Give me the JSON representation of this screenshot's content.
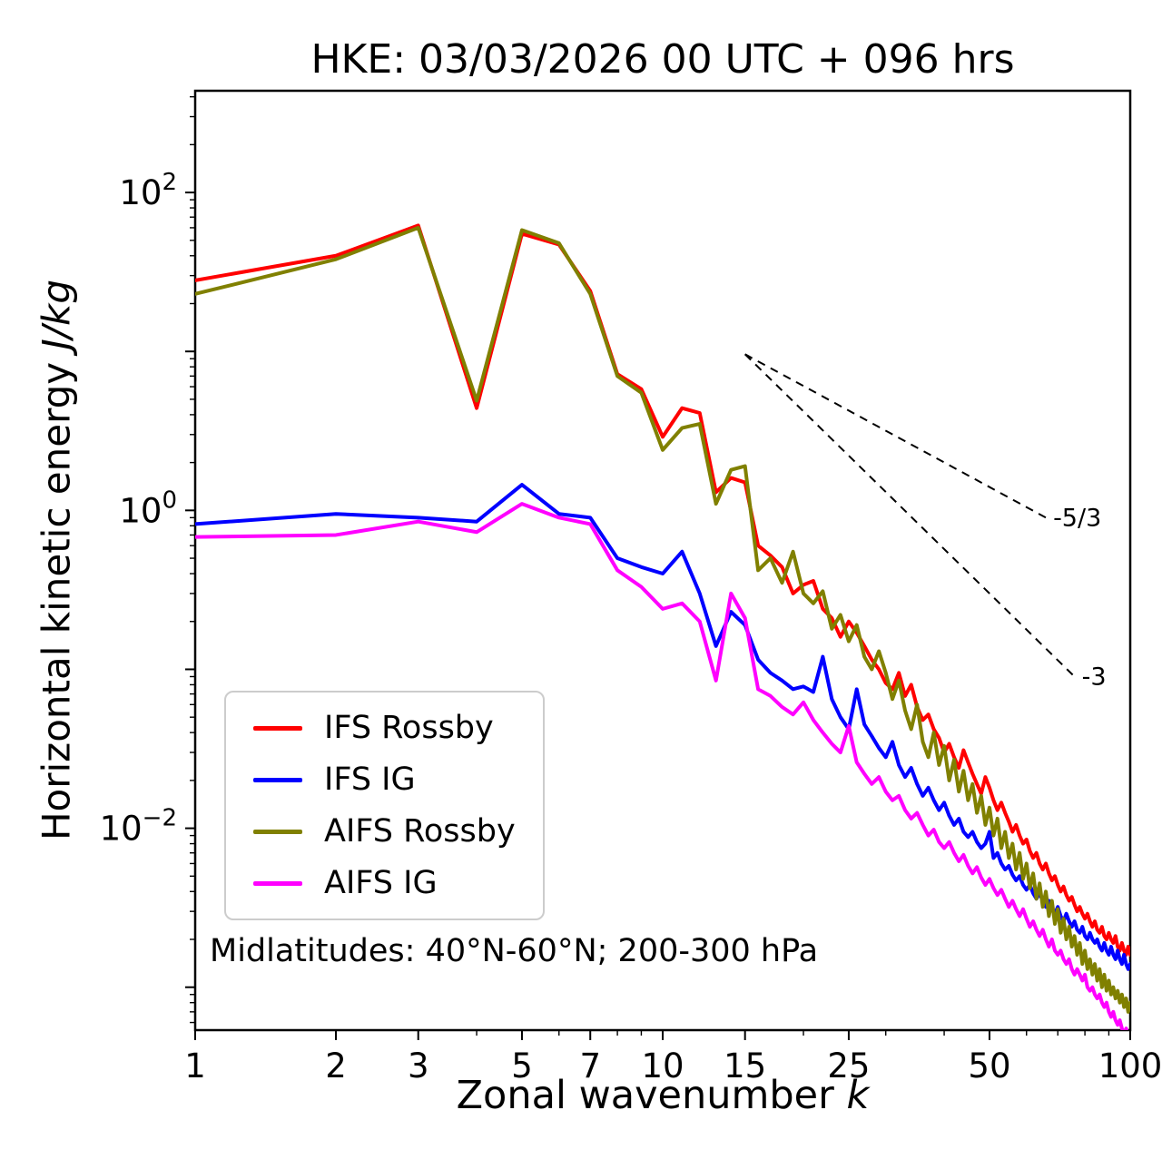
{
  "chart_data": {
    "type": "line",
    "title": "HKE: 03/03/2026 00 UTC + 096 hrs",
    "xlabel_text": "Zonal wavenumber ",
    "xlabel_math": "k",
    "ylabel_text": "Horizontal kinetic energy ",
    "ylabel_math": "J/kg",
    "annotation": "Midlatitudes: 40°N-60°N; 200-300 hPa",
    "x_scale": "log",
    "y_scale": "log",
    "xlim": [
      1,
      100
    ],
    "ylim_log10": [
      -3.27,
      2.64
    ],
    "grid": false,
    "legend_position": "lower left",
    "x_ticks": [
      {
        "value": 1,
        "label": "1"
      },
      {
        "value": 2,
        "label": "2"
      },
      {
        "value": 3,
        "label": "3"
      },
      {
        "value": 5,
        "label": "5"
      },
      {
        "value": 7,
        "label": "7"
      },
      {
        "value": 10,
        "label": "10"
      },
      {
        "value": 15,
        "label": "15"
      },
      {
        "value": 25,
        "label": "25"
      },
      {
        "value": 50,
        "label": "50"
      },
      {
        "value": 100,
        "label": "100"
      }
    ],
    "x_minor_ticks": [
      4,
      6,
      8,
      9,
      20,
      30,
      40,
      60,
      70,
      80,
      90
    ],
    "y_ticks": [
      {
        "log10": 2,
        "base": "10",
        "exp": "2"
      },
      {
        "log10": 0,
        "base": "10",
        "exp": "0"
      },
      {
        "log10": -2,
        "base": "10",
        "exp": "−2"
      }
    ],
    "y_major_unlabeled_log10": [
      1,
      -1,
      -3
    ],
    "reference_lines": [
      {
        "label": "-5/3",
        "k1": 15,
        "v1": 9.6,
        "k2": 66,
        "v2": 0.9
      },
      {
        "label": "-3",
        "k1": 15,
        "v1": 9.6,
        "k2": 76,
        "v2": 0.09
      }
    ],
    "k": [
      1,
      2,
      3,
      4,
      5,
      6,
      7,
      8,
      9,
      10,
      11,
      12,
      13,
      14,
      15,
      16,
      17,
      18,
      19,
      20,
      21,
      22,
      23,
      24,
      25,
      26,
      27,
      28,
      29,
      30,
      31,
      32,
      33,
      34,
      35,
      36,
      37,
      38,
      39,
      40,
      41,
      42,
      43,
      44,
      45,
      46,
      47,
      48,
      49,
      50,
      51,
      52,
      53,
      54,
      55,
      56,
      57,
      58,
      59,
      60,
      61,
      62,
      63,
      64,
      65,
      66,
      67,
      68,
      69,
      70,
      71,
      72,
      73,
      74,
      75,
      76,
      77,
      78,
      79,
      80,
      81,
      82,
      83,
      84,
      85,
      86,
      87,
      88,
      89,
      90,
      91,
      92,
      93,
      94,
      95,
      96,
      97,
      98,
      99,
      100
    ],
    "series": [
      {
        "name": "IFS Rossby",
        "color": "#ff0000",
        "values": [
          28,
          40,
          62,
          4.4,
          55,
          47,
          24,
          7.2,
          5.8,
          2.9,
          4.4,
          4.1,
          1.3,
          1.6,
          1.5,
          0.6,
          0.52,
          0.44,
          0.3,
          0.34,
          0.36,
          0.24,
          0.21,
          0.16,
          0.2,
          0.17,
          0.14,
          0.115,
          0.1,
          0.082,
          0.075,
          0.095,
          0.068,
          0.08,
          0.058,
          0.048,
          0.052,
          0.042,
          0.037,
          0.03,
          0.034,
          0.028,
          0.024,
          0.031,
          0.026,
          0.022,
          0.019,
          0.0165,
          0.021,
          0.018,
          0.015,
          0.013,
          0.0145,
          0.0125,
          0.011,
          0.0095,
          0.0105,
          0.009,
          0.008,
          0.0085,
          0.0072,
          0.0065,
          0.007,
          0.006,
          0.0055,
          0.006,
          0.0052,
          0.0047,
          0.005,
          0.0044,
          0.004,
          0.0043,
          0.0038,
          0.0035,
          0.0037,
          0.0033,
          0.003,
          0.0032,
          0.0029,
          0.0027,
          0.0029,
          0.0026,
          0.0024,
          0.0026,
          0.0023,
          0.0022,
          0.0024,
          0.0021,
          0.002,
          0.0022,
          0.002,
          0.0019,
          0.0021,
          0.0018,
          0.0017,
          0.0019,
          0.0017,
          0.0016,
          0.0018,
          0.0016
        ]
      },
      {
        "name": "IFS IG",
        "color": "#0000ff",
        "values": [
          0.82,
          0.95,
          0.9,
          0.85,
          1.45,
          0.95,
          0.9,
          0.5,
          0.44,
          0.4,
          0.55,
          0.3,
          0.14,
          0.23,
          0.19,
          0.115,
          0.095,
          0.085,
          0.075,
          0.078,
          0.072,
          0.12,
          0.065,
          0.05,
          0.042,
          0.075,
          0.045,
          0.038,
          0.032,
          0.028,
          0.035,
          0.025,
          0.021,
          0.024,
          0.019,
          0.016,
          0.018,
          0.015,
          0.013,
          0.0145,
          0.012,
          0.0105,
          0.0115,
          0.0095,
          0.0088,
          0.0095,
          0.0082,
          0.0075,
          0.008,
          0.0095,
          0.0065,
          0.007,
          0.006,
          0.0055,
          0.0058,
          0.0051,
          0.0047,
          0.005,
          0.0044,
          0.0041,
          0.0044,
          0.0039,
          0.0036,
          0.0039,
          0.0035,
          0.0032,
          0.0035,
          0.0031,
          0.0029,
          0.0032,
          0.0028,
          0.0026,
          0.0029,
          0.0026,
          0.0024,
          0.0026,
          0.0023,
          0.0022,
          0.0024,
          0.0021,
          0.002,
          0.0022,
          0.002,
          0.0019,
          0.002,
          0.0018,
          0.0017,
          0.0019,
          0.0017,
          0.0016,
          0.0018,
          0.0016,
          0.0015,
          0.0017,
          0.0015,
          0.0014,
          0.0016,
          0.0014,
          0.0013,
          0.0014
        ]
      },
      {
        "name": "AIFS Rossby",
        "color": "#808000",
        "values": [
          23,
          38,
          60,
          4.9,
          58,
          48,
          23,
          7,
          5.5,
          2.4,
          3.3,
          3.5,
          1.1,
          1.8,
          1.9,
          0.42,
          0.5,
          0.35,
          0.55,
          0.3,
          0.26,
          0.31,
          0.18,
          0.22,
          0.15,
          0.19,
          0.12,
          0.1,
          0.13,
          0.095,
          0.065,
          0.085,
          0.055,
          0.042,
          0.06,
          0.035,
          0.028,
          0.04,
          0.025,
          0.033,
          0.02,
          0.027,
          0.017,
          0.023,
          0.015,
          0.019,
          0.0125,
          0.016,
          0.0105,
          0.0135,
          0.009,
          0.0115,
          0.0075,
          0.0095,
          0.0065,
          0.008,
          0.0055,
          0.007,
          0.0048,
          0.006,
          0.0042,
          0.0052,
          0.0036,
          0.0045,
          0.0032,
          0.004,
          0.0028,
          0.0035,
          0.0025,
          0.0031,
          0.0022,
          0.0027,
          0.002,
          0.0024,
          0.0018,
          0.0021,
          0.0016,
          0.0019,
          0.0014,
          0.0017,
          0.0013,
          0.0015,
          0.0012,
          0.0014,
          0.0011,
          0.0013,
          0.001,
          0.0012,
          0.00095,
          0.0011,
          0.0009,
          0.001,
          0.00085,
          0.00095,
          0.0008,
          0.0009,
          0.00075,
          0.00085,
          0.0007,
          0.0008
        ]
      },
      {
        "name": "AIFS IG",
        "color": "#ff00ff",
        "values": [
          0.68,
          0.7,
          0.85,
          0.73,
          1.1,
          0.9,
          0.82,
          0.42,
          0.33,
          0.24,
          0.26,
          0.2,
          0.085,
          0.3,
          0.21,
          0.075,
          0.068,
          0.058,
          0.052,
          0.062,
          0.048,
          0.04,
          0.034,
          0.03,
          0.044,
          0.026,
          0.022,
          0.019,
          0.021,
          0.017,
          0.015,
          0.016,
          0.013,
          0.0115,
          0.0125,
          0.0105,
          0.009,
          0.0098,
          0.0082,
          0.0075,
          0.0082,
          0.007,
          0.0062,
          0.0068,
          0.0058,
          0.0052,
          0.0057,
          0.0049,
          0.0044,
          0.0048,
          0.0042,
          0.0038,
          0.0041,
          0.0036,
          0.0032,
          0.0035,
          0.0031,
          0.0028,
          0.0031,
          0.0027,
          0.0024,
          0.0026,
          0.0023,
          0.0021,
          0.0023,
          0.002,
          0.0018,
          0.002,
          0.0017,
          0.0016,
          0.0017,
          0.0015,
          0.0014,
          0.0015,
          0.0013,
          0.0012,
          0.0013,
          0.0012,
          0.0011,
          0.0012,
          0.001,
          0.00095,
          0.001,
          0.0009,
          0.00085,
          0.0009,
          0.0008,
          0.00075,
          0.0008,
          0.0007,
          0.00065,
          0.0007,
          0.00062,
          0.00058,
          0.00062,
          0.00055,
          0.0005,
          0.00055,
          0.00048,
          0.00045
        ]
      }
    ]
  }
}
